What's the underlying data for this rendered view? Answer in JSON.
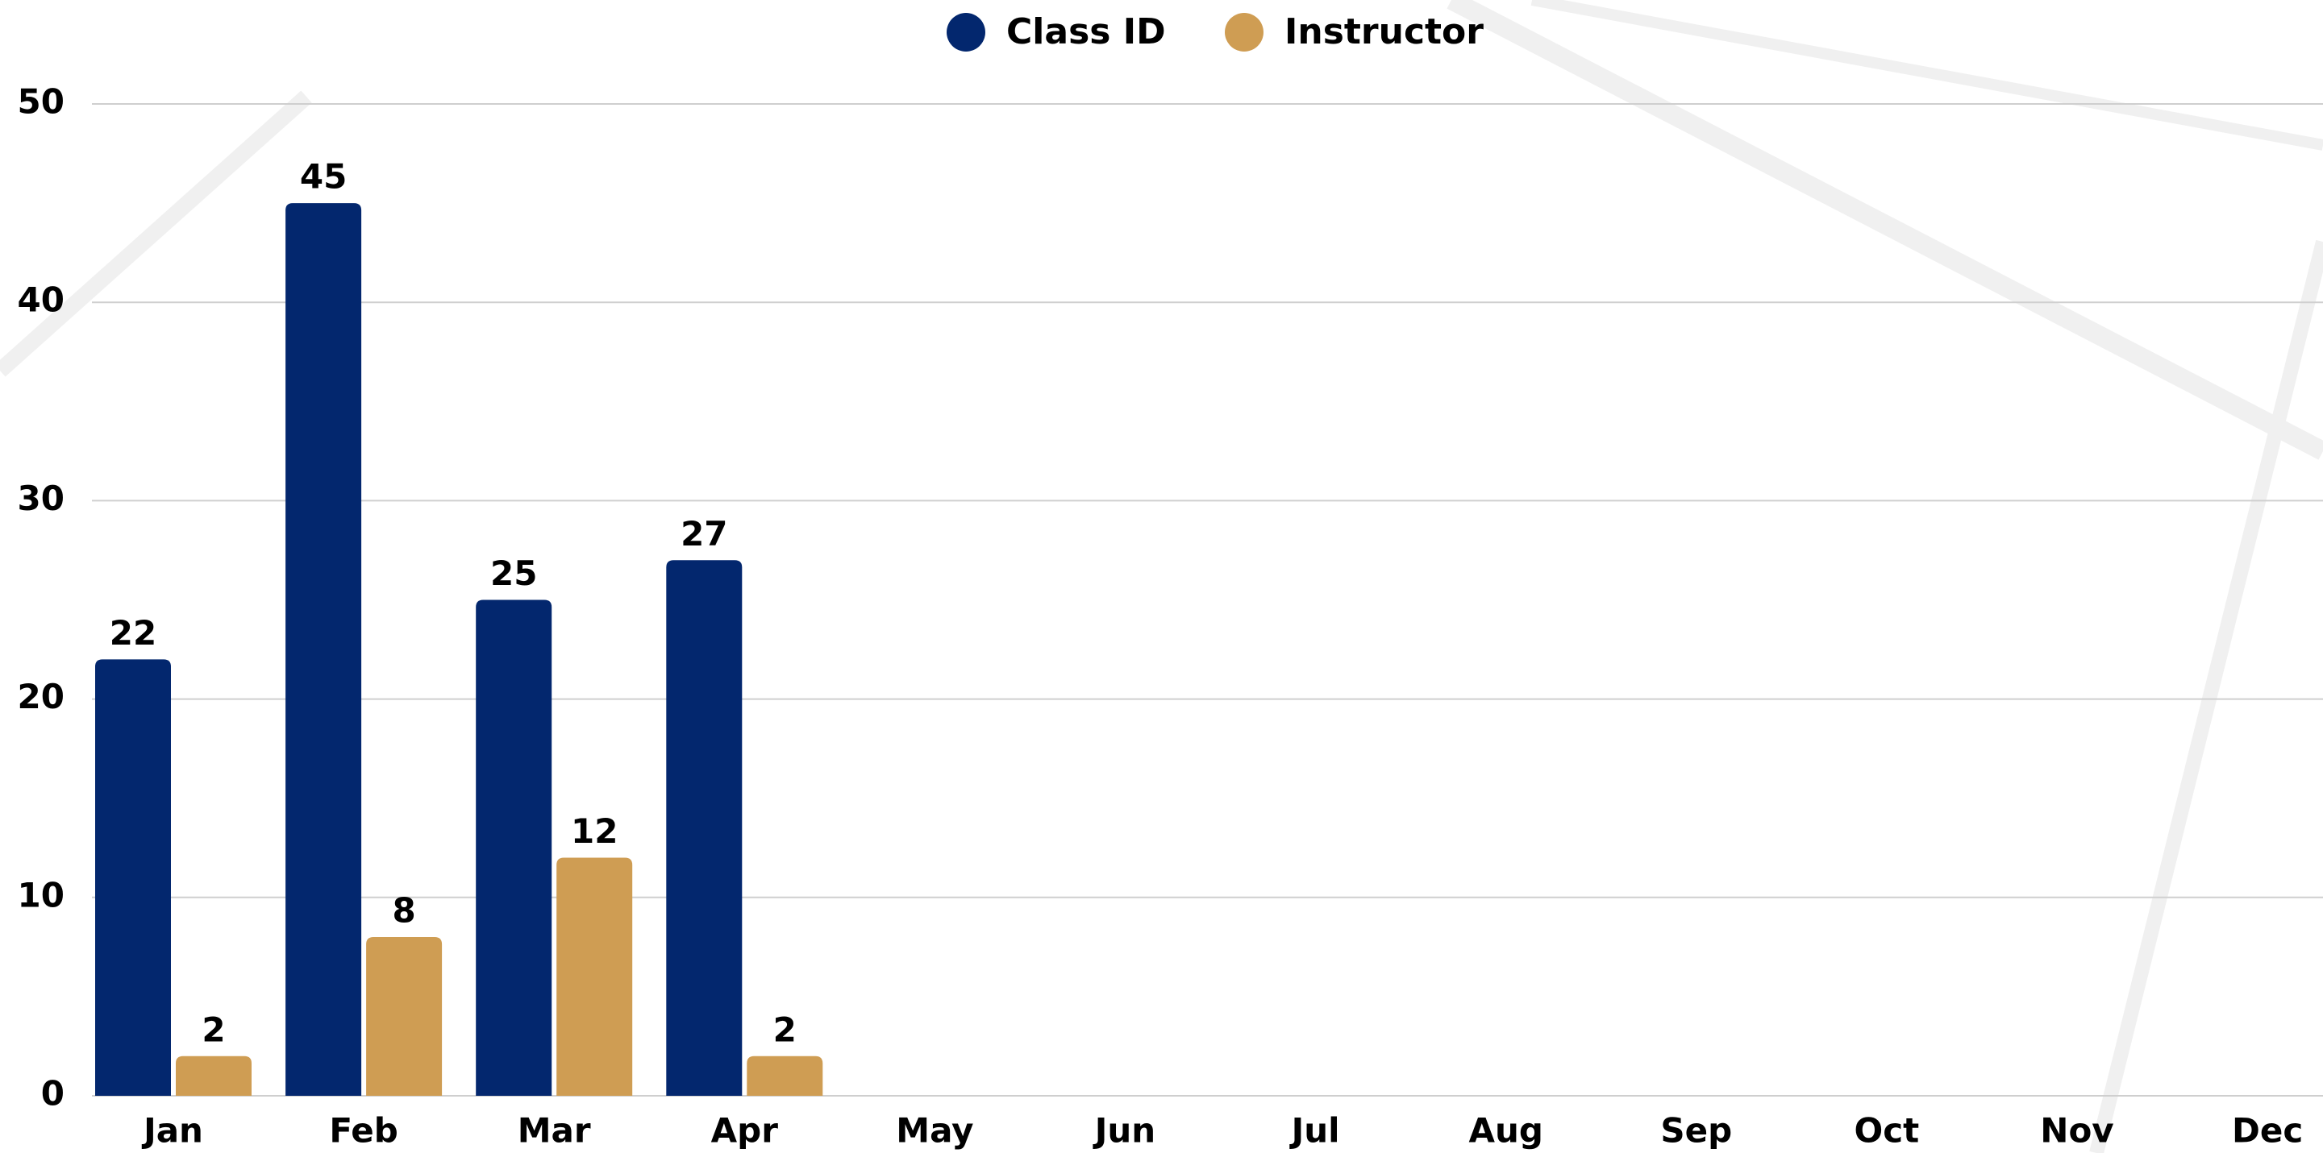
{
  "chart_data": {
    "type": "bar",
    "categories": [
      "Jan",
      "Feb",
      "Mar",
      "Apr",
      "May",
      "Jun",
      "Jul",
      "Aug",
      "Sep",
      "Oct",
      "Nov",
      "Dec"
    ],
    "series": [
      {
        "name": "Class ID",
        "color": "#03276e",
        "values": [
          22,
          45,
          25,
          27,
          null,
          null,
          null,
          null,
          null,
          null,
          null,
          null
        ]
      },
      {
        "name": "Instructor",
        "color": "#cf9d53",
        "values": [
          2,
          8,
          12,
          2,
          null,
          null,
          null,
          null,
          null,
          null,
          null,
          null
        ]
      }
    ],
    "ylim": [
      0,
      50
    ],
    "yticks": [
      0,
      10,
      20,
      30,
      40,
      50
    ],
    "grid": true,
    "legend": "top"
  }
}
